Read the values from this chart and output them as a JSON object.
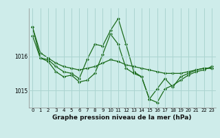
{
  "xlabel": "Graphe pression niveau de la mer (hPa)",
  "background_color": "#ceecea",
  "grid_color": "#aad4d0",
  "line_color": "#1a6b1a",
  "x_ticks": [
    0,
    1,
    2,
    3,
    4,
    5,
    6,
    7,
    8,
    9,
    10,
    11,
    12,
    13,
    14,
    15,
    16,
    17,
    18,
    19,
    20,
    21,
    22,
    23
  ],
  "ylim": [
    1014.5,
    1017.4
  ],
  "yticks": [
    1015.0,
    1016.0
  ],
  "series1": [
    1016.85,
    1016.1,
    1015.95,
    1015.8,
    1015.7,
    1015.65,
    1015.6,
    1015.65,
    1015.7,
    1015.8,
    1015.9,
    1015.85,
    1015.75,
    1015.7,
    1015.65,
    1015.6,
    1015.55,
    1015.5,
    1015.5,
    1015.5,
    1015.55,
    1015.6,
    1015.65,
    1015.65
  ],
  "series2": [
    1016.6,
    1015.95,
    1015.85,
    1015.55,
    1015.4,
    1015.45,
    1015.25,
    1015.3,
    1015.5,
    1016.05,
    1016.65,
    1016.35,
    1015.65,
    1015.5,
    1015.4,
    1014.75,
    1014.65,
    1015.05,
    1015.15,
    1015.3,
    1015.45,
    1015.55,
    1015.6,
    1015.7
  ],
  "series3": [
    1016.85,
    1015.95,
    1015.9,
    1015.7,
    1015.55,
    1015.5,
    1015.35,
    1015.9,
    1016.35,
    1016.3,
    1016.75,
    1017.1,
    1016.35,
    1015.55,
    1015.4,
    1014.75,
    1015.05,
    1015.35,
    1015.1,
    1015.4,
    1015.5,
    1015.6,
    1015.65,
    1015.65
  ],
  "marker": "D",
  "markersize": 2.0,
  "linewidth": 0.9,
  "tick_fontsize": 5.0,
  "xlabel_fontsize": 6.5
}
